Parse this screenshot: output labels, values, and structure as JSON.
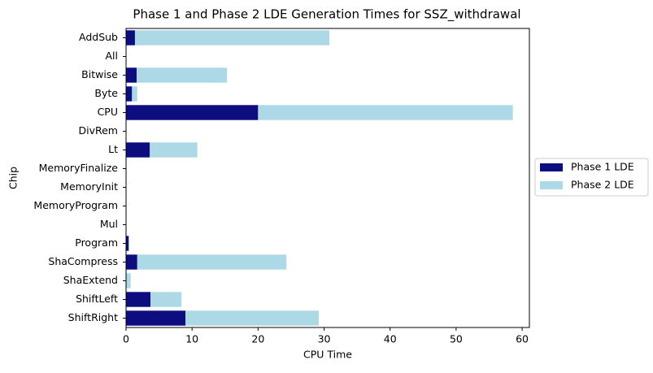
{
  "chart_data": {
    "type": "stacked_barh",
    "title": "Phase 1 and Phase 2 LDE Generation Times for SSZ_withdrawal",
    "xlabel": "CPU Time",
    "ylabel": "Chip",
    "categories": [
      "AddSub",
      "All",
      "Bitwise",
      "Byte",
      "CPU",
      "DivRem",
      "Lt",
      "MemoryFinalize",
      "MemoryInit",
      "MemoryProgram",
      "Mul",
      "Program",
      "ShaCompress",
      "ShaExtend",
      "ShiftLeft",
      "ShiftRight"
    ],
    "series": [
      {
        "name": "Phase 1 LDE",
        "color": "#0d0d80",
        "values": [
          1.35,
          0,
          1.6,
          0.9,
          20.0,
          0,
          3.6,
          0,
          0,
          0,
          0,
          0.4,
          1.7,
          0,
          3.7,
          9.0
        ]
      },
      {
        "name": "Phase 2 LDE",
        "color": "#add8e6",
        "values": [
          29.45,
          0,
          13.7,
          0.8,
          38.6,
          0,
          7.2,
          0,
          0,
          0,
          0,
          0.1,
          22.6,
          0.7,
          4.7,
          20.2
        ]
      }
    ],
    "xlim": [
      0,
      61.1
    ],
    "xticks": [
      0,
      10,
      20,
      30,
      40,
      50,
      60
    ],
    "legend": "outside-right"
  }
}
